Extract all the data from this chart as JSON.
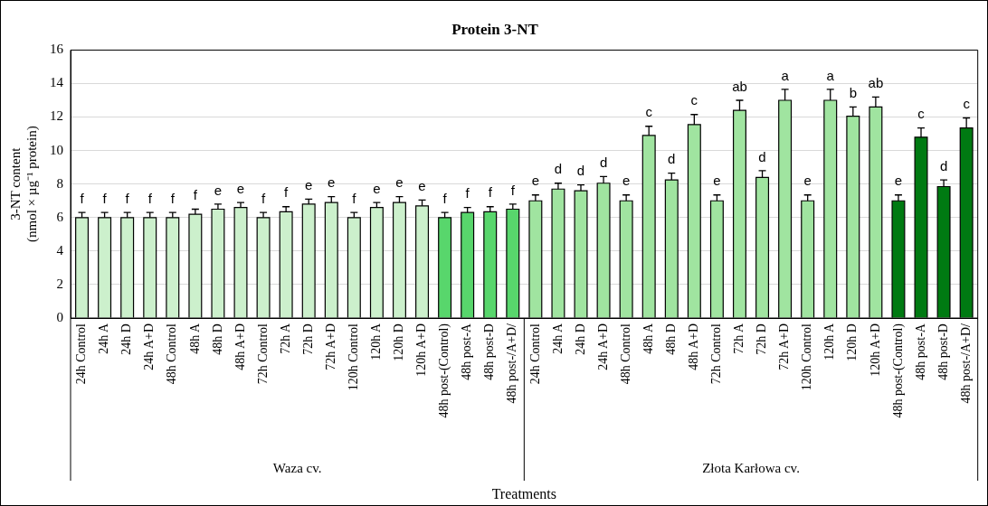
{
  "chart_data": {
    "type": "bar",
    "title": "Protein 3-NT",
    "xlabel": "Treatments",
    "ylabel": "3-NT content\n(nmol × µg⁻¹ protein)",
    "categories": [
      "24h Control",
      "24h A",
      "24h D",
      "24h A+D",
      "48h Control",
      "48h A",
      "48h D",
      "48h A+D",
      "72h Control",
      "72h A",
      "72h D",
      "72h A+D",
      "120h Control",
      "120h A",
      "120h D",
      "120h A+D",
      "48h post-(Control)",
      "48h post-A",
      "48h post-D",
      "48h post-/A+D/",
      "24h Control",
      "24h A",
      "24h D",
      "24h A+D",
      "48h Control",
      "48h A",
      "48h D",
      "48h A+D",
      "72h Control",
      "72h A",
      "72h D",
      "72h A+D",
      "120h Control",
      "120h A",
      "120h D",
      "120h A+D",
      "48h post-(Control)",
      "48h post-A",
      "48h post-D",
      "48h post-/A+D/"
    ],
    "values": [
      6,
      6,
      6,
      6,
      6,
      6.2,
      6.5,
      6.6,
      6,
      6.35,
      6.8,
      6.9,
      6,
      6.6,
      6.9,
      6.7,
      6,
      6.3,
      6.35,
      6.5,
      7.0,
      7.7,
      7.6,
      8.05,
      7.0,
      10.9,
      8.25,
      11.55,
      7.0,
      12.4,
      8.4,
      13.0,
      7.0,
      13.0,
      12.05,
      12.6,
      7.0,
      10.8,
      7.85,
      11.35
    ],
    "errors": [
      0.3,
      0.3,
      0.3,
      0.3,
      0.3,
      0.3,
      0.3,
      0.3,
      0.3,
      0.3,
      0.3,
      0.35,
      0.3,
      0.3,
      0.35,
      0.35,
      0.3,
      0.3,
      0.3,
      0.3,
      0.35,
      0.35,
      0.35,
      0.4,
      0.35,
      0.55,
      0.4,
      0.6,
      0.35,
      0.6,
      0.4,
      0.65,
      0.35,
      0.65,
      0.55,
      0.6,
      0.35,
      0.55,
      0.4,
      0.6
    ],
    "value_labels": [
      "f",
      "f",
      "f",
      "f",
      "f",
      "f",
      "e",
      "e",
      "f",
      "f",
      "e",
      "e",
      "f",
      "e",
      "e",
      "e",
      "f",
      "f",
      "f",
      "f",
      "e",
      "d",
      "d",
      "d",
      "e",
      "c",
      "d",
      "c",
      "e",
      "ab",
      "d",
      "a",
      "e",
      "a",
      "b",
      "ab",
      "e",
      "c",
      "d",
      "c"
    ],
    "colors": [
      "#ccf0cc",
      "#ccf0cc",
      "#ccf0cc",
      "#ccf0cc",
      "#ccf0cc",
      "#ccf0cc",
      "#ccf0cc",
      "#ccf0cc",
      "#ccf0cc",
      "#ccf0cc",
      "#ccf0cc",
      "#ccf0cc",
      "#ccf0cc",
      "#ccf0cc",
      "#ccf0cc",
      "#ccf0cc",
      "#58d66c",
      "#58d66c",
      "#58d66c",
      "#58d66c",
      "#a0e4a0",
      "#a0e4a0",
      "#a0e4a0",
      "#a0e4a0",
      "#a0e4a0",
      "#a0e4a0",
      "#a0e4a0",
      "#a0e4a0",
      "#a0e4a0",
      "#a0e4a0",
      "#a0e4a0",
      "#a0e4a0",
      "#a0e4a0",
      "#a0e4a0",
      "#a0e4a0",
      "#a0e4a0",
      "#007a12",
      "#007a12",
      "#007a12",
      "#007a12"
    ],
    "annotations": [
      "Waza cv.",
      "Złota Karłowa cv."
    ],
    "ylim": [
      0,
      16
    ],
    "yticks": [
      0,
      2,
      4,
      6,
      8,
      10,
      12,
      14,
      16
    ],
    "grid": "y"
  }
}
